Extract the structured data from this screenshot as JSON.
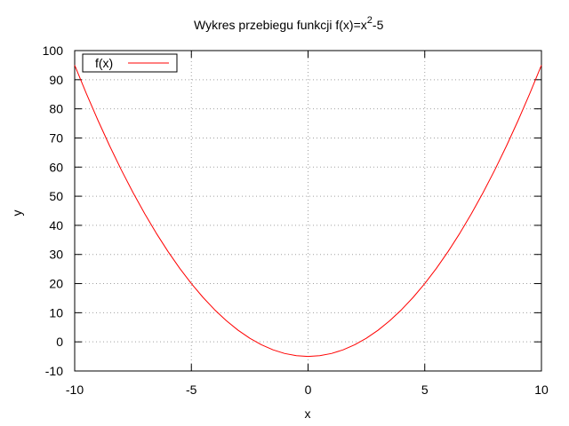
{
  "chart_data": {
    "type": "line",
    "title": {
      "main": "Wykres przebiegu funkcji f(x)=x",
      "superscript": "2",
      "suffix": "-5"
    },
    "xlabel": "x",
    "ylabel": "y",
    "xlim": [
      -10,
      10
    ],
    "ylim": [
      -10,
      100
    ],
    "xticks": [
      -10,
      -5,
      0,
      5,
      10
    ],
    "yticks": [
      -10,
      0,
      10,
      20,
      30,
      40,
      50,
      60,
      70,
      80,
      90,
      100
    ],
    "grid": true,
    "legend_position": "top-left",
    "series": [
      {
        "name": "f(x)",
        "color": "#ff0000",
        "x": [
          -10,
          -9.5,
          -9,
          -8.5,
          -8,
          -7.5,
          -7,
          -6.5,
          -6,
          -5.5,
          -5,
          -4.5,
          -4,
          -3.5,
          -3,
          -2.5,
          -2,
          -1.5,
          -1,
          -0.5,
          0,
          0.5,
          1,
          1.5,
          2,
          2.5,
          3,
          3.5,
          4,
          4.5,
          5,
          5.5,
          6,
          6.5,
          7,
          7.5,
          8,
          8.5,
          9,
          9.5,
          10
        ],
        "y": [
          95,
          85.25,
          76,
          67.25,
          59,
          51.25,
          44,
          37.25,
          31,
          25.25,
          20,
          15.25,
          11,
          7.25,
          4,
          1.25,
          -1,
          -2.75,
          -4,
          -4.75,
          -5,
          -4.75,
          -4,
          -2.75,
          -1,
          1.25,
          4,
          7.25,
          11,
          15.25,
          20,
          25.25,
          31,
          37.25,
          44,
          51.25,
          59,
          67.25,
          76,
          85.25,
          95
        ]
      }
    ]
  }
}
